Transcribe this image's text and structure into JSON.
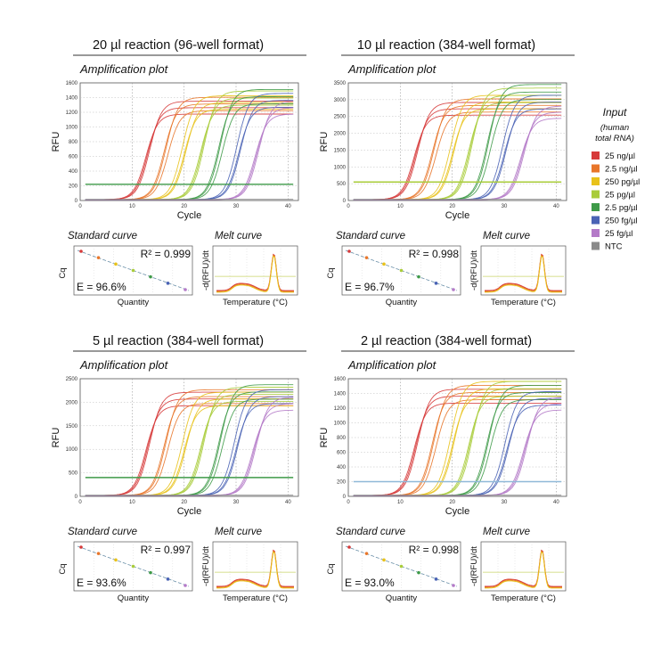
{
  "legend": {
    "title": "Input",
    "subtitle_lines": [
      "(human",
      "total RNA)"
    ],
    "items": [
      {
        "label": "25 ng/µl",
        "color": "#d63a3a"
      },
      {
        "label": "2.5 ng/µl",
        "color": "#e8762a"
      },
      {
        "label": "250 pg/µl",
        "color": "#e8c21a"
      },
      {
        "label": "25 pg/µl",
        "color": "#a9cc3a"
      },
      {
        "label": "2.5 pg/µl",
        "color": "#3e9a48"
      },
      {
        "label": "250 fg/µl",
        "color": "#4a63b5"
      },
      {
        "label": "25 fg/µl",
        "color": "#b47ac8"
      },
      {
        "label": "NTC",
        "color": "#8a8a8a"
      }
    ]
  },
  "chart_data": [
    {
      "type": "line",
      "title": "20 µl reaction (96-well format)",
      "subtitle": "Amplification plot",
      "xlabel": "Cycle",
      "ylabel": "RFU",
      "xlim": [
        0,
        42
      ],
      "xticks": [
        0,
        10,
        20,
        30,
        40
      ],
      "ylim": [
        0,
        1600
      ],
      "yticks": [
        0,
        200,
        400,
        600,
        800,
        1000,
        1200,
        1400,
        1600
      ],
      "threshold": 220,
      "threshold_color": "#3e9a48",
      "series": [
        {
          "name": "25 ng/µl",
          "midpoint": 13.0,
          "plateau": 1250
        },
        {
          "name": "2.5 ng/µl",
          "midpoint": 16.5,
          "plateau": 1300
        },
        {
          "name": "250 pg/µl",
          "midpoint": 20.0,
          "plateau": 1320
        },
        {
          "name": "25 pg/µl",
          "midpoint": 23.5,
          "plateau": 1380
        },
        {
          "name": "2.5 pg/µl",
          "midpoint": 27.0,
          "plateau": 1400
        },
        {
          "name": "250 fg/µl",
          "midpoint": 30.5,
          "plateau": 1350
        },
        {
          "name": "25 fg/µl",
          "midpoint": 34.0,
          "plateau": 1250
        }
      ],
      "standard_curve": {
        "title": "Standard curve",
        "xlabel": "Quantity",
        "ylabel": "Cq",
        "r2": "R² = 0.999",
        "efficiency": "E = 96.6%"
      },
      "melt_curve": {
        "title": "Melt curve",
        "xlabel": "Temperature (°C)",
        "ylabel": "-d(RFU)/dt"
      }
    },
    {
      "type": "line",
      "title": "10 µl reaction (384-well format)",
      "subtitle": "Amplification plot",
      "xlabel": "Cycle",
      "ylabel": "RFU",
      "xlim": [
        0,
        42
      ],
      "xticks": [
        0,
        10,
        20,
        30,
        40
      ],
      "ylim": [
        0,
        3500
      ],
      "yticks": [
        0,
        500,
        1000,
        1500,
        2000,
        2500,
        3000,
        3500
      ],
      "threshold": 550,
      "threshold_color": "#a9cc3a",
      "series": [
        {
          "name": "25 ng/µl",
          "midpoint": 13.0,
          "plateau": 2700
        },
        {
          "name": "2.5 ng/µl",
          "midpoint": 16.5,
          "plateau": 2800
        },
        {
          "name": "250 pg/µl",
          "midpoint": 20.0,
          "plateau": 2900
        },
        {
          "name": "25 pg/µl",
          "midpoint": 23.5,
          "plateau": 3100
        },
        {
          "name": "2.5 pg/µl",
          "midpoint": 27.0,
          "plateau": 3200
        },
        {
          "name": "250 fg/µl",
          "midpoint": 30.0,
          "plateau": 2900
        },
        {
          "name": "25 fg/µl",
          "midpoint": 33.5,
          "plateau": 2600
        }
      ],
      "standard_curve": {
        "title": "Standard curve",
        "xlabel": "Quantity",
        "ylabel": "Cq",
        "r2": "R² = 0.998",
        "efficiency": "E = 96.7%"
      },
      "melt_curve": {
        "title": "Melt curve",
        "xlabel": "Temperature (°C)",
        "ylabel": "-d(RFU)/dt"
      }
    },
    {
      "type": "line",
      "title": "5 µl reaction (384-well format)",
      "subtitle": "Amplification plot",
      "xlabel": "Cycle",
      "ylabel": "RFU",
      "xlim": [
        0,
        42
      ],
      "xticks": [
        0,
        10,
        20,
        30,
        40
      ],
      "ylim": [
        0,
        2500
      ],
      "yticks": [
        0,
        500,
        1000,
        1500,
        2000,
        2500
      ],
      "threshold": 400,
      "threshold_color": "#3e9a48",
      "series": [
        {
          "name": "25 ng/µl",
          "midpoint": 13.0,
          "plateau": 2050
        },
        {
          "name": "2.5 ng/µl",
          "midpoint": 16.5,
          "plateau": 2100
        },
        {
          "name": "250 pg/µl",
          "midpoint": 20.0,
          "plateau": 2050
        },
        {
          "name": "25 pg/µl",
          "midpoint": 23.5,
          "plateau": 2150
        },
        {
          "name": "2.5 pg/µl",
          "midpoint": 27.0,
          "plateau": 2200
        },
        {
          "name": "250 fg/µl",
          "midpoint": 30.0,
          "plateau": 2100
        },
        {
          "name": "25 fg/µl",
          "midpoint": 33.5,
          "plateau": 1950
        }
      ],
      "standard_curve": {
        "title": "Standard curve",
        "xlabel": "Quantity",
        "ylabel": "Cq",
        "r2": "R² = 0.997",
        "efficiency": "E = 93.6%"
      },
      "melt_curve": {
        "title": "Melt curve",
        "xlabel": "Temperature (°C)",
        "ylabel": "-d(RFU)/dt"
      }
    },
    {
      "type": "line",
      "title": "2 µl reaction (384-well format)",
      "subtitle": "Amplification plot",
      "xlabel": "Cycle",
      "ylabel": "RFU",
      "xlim": [
        0,
        42
      ],
      "xticks": [
        0,
        10,
        20,
        30,
        40
      ],
      "ylim": [
        0,
        1600
      ],
      "yticks": [
        0,
        200,
        400,
        600,
        800,
        1000,
        1200,
        1400,
        1600
      ],
      "threshold": 200,
      "threshold_color": "#8fb8d8",
      "series": [
        {
          "name": "25 ng/µl",
          "midpoint": 13.0,
          "plateau": 1350
        },
        {
          "name": "2.5 ng/µl",
          "midpoint": 16.5,
          "plateau": 1400
        },
        {
          "name": "250 pg/µl",
          "midpoint": 20.0,
          "plateau": 1450
        },
        {
          "name": "25 pg/µl",
          "midpoint": 23.5,
          "plateau": 1450
        },
        {
          "name": "2.5 pg/µl",
          "midpoint": 27.0,
          "plateau": 1400
        },
        {
          "name": "250 fg/µl",
          "midpoint": 30.5,
          "plateau": 1320
        },
        {
          "name": "25 fg/µl",
          "midpoint": 34.0,
          "plateau": 1250
        }
      ],
      "standard_curve": {
        "title": "Standard curve",
        "xlabel": "Quantity",
        "ylabel": "Cq",
        "r2": "R² = 0.998",
        "efficiency": "E = 93.0%"
      },
      "melt_curve": {
        "title": "Melt curve",
        "xlabel": "Temperature (°C)",
        "ylabel": "-d(RFU)/dt"
      }
    }
  ]
}
